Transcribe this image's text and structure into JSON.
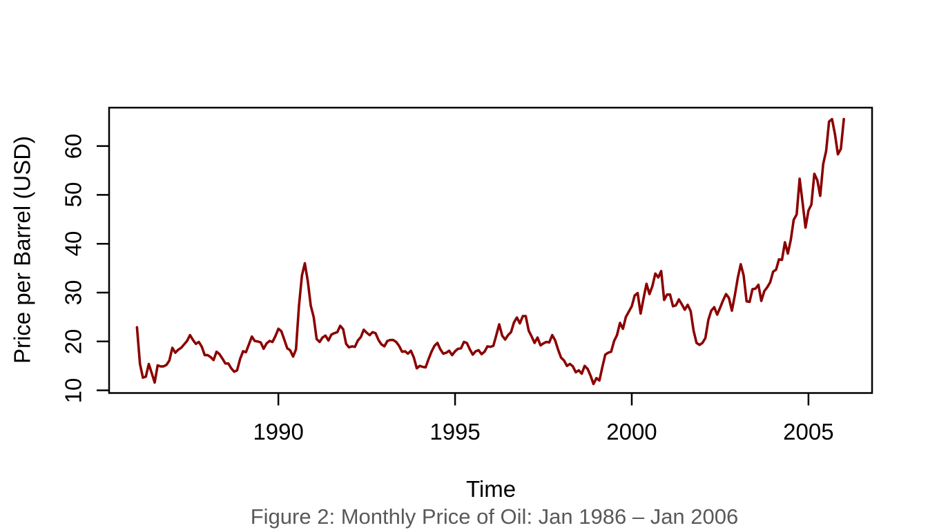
{
  "figure": {
    "x_axis_title": "Time",
    "y_axis_title": "Price per Barrel (USD)",
    "caption": "Figure 2: Monthly Price of Oil: Jan 1986 – Jan 2006"
  },
  "colors": {
    "line": "#8B0000",
    "axis": "#000000",
    "tick_text": "#000000",
    "caption_text": "#595959",
    "background": "#FFFFFF"
  },
  "chart_data": {
    "type": "line",
    "title": "",
    "xlabel": "Time",
    "ylabel": "Price per Barrel (USD)",
    "grid": false,
    "legend_position": "none",
    "xlim": [
      1985.21,
      2006.8
    ],
    "ylim": [
      9.45,
      67.85
    ],
    "x_ticks": [
      "1990",
      "1995",
      "2000",
      "2005"
    ],
    "x_tick_values": [
      1990,
      1995,
      2000,
      2005
    ],
    "y_ticks": [
      "10",
      "20",
      "30",
      "40",
      "50",
      "60"
    ],
    "y_tick_values": [
      10,
      20,
      30,
      40,
      50,
      60
    ],
    "x_start_year": 1986.0,
    "x_step_years": 0.08333333,
    "series": [
      {
        "name": "Monthly oil price (USD per barrel)",
        "values": [
          22.9,
          15.4,
          12.6,
          12.8,
          15.4,
          13.5,
          11.6,
          15.1,
          14.9,
          14.9,
          15.2,
          16.1,
          18.7,
          17.7,
          18.3,
          18.7,
          19.4,
          20.1,
          21.3,
          20.3,
          19.5,
          19.9,
          18.9,
          17.2,
          17.2,
          16.8,
          16.2,
          17.9,
          17.4,
          16.5,
          15.5,
          15.5,
          14.5,
          13.8,
          14.1,
          16.4,
          18.0,
          17.8,
          19.4,
          21.0,
          20.1,
          20.0,
          19.8,
          18.5,
          19.6,
          20.1,
          19.9,
          21.1,
          22.6,
          22.1,
          20.4,
          18.6,
          18.2,
          16.9,
          18.4,
          27.3,
          33.5,
          36.0,
          32.3,
          27.3,
          25.0,
          20.5,
          19.9,
          20.8,
          21.2,
          20.2,
          21.4,
          21.7,
          21.9,
          23.2,
          22.5,
          19.5,
          18.8,
          19.0,
          18.9,
          20.2,
          20.9,
          22.4,
          21.8,
          21.3,
          21.9,
          21.7,
          20.3,
          19.4,
          19.0,
          20.1,
          20.3,
          20.3,
          19.9,
          19.1,
          17.9,
          18.0,
          17.5,
          18.1,
          16.7,
          14.5,
          15.0,
          14.8,
          14.7,
          16.4,
          17.9,
          19.1,
          19.7,
          18.4,
          17.5,
          17.7,
          18.1,
          17.2,
          18.0,
          18.5,
          18.6,
          19.9,
          19.7,
          18.4,
          17.3,
          18.0,
          18.2,
          17.4,
          17.9,
          19.0,
          18.9,
          19.1,
          21.3,
          23.5,
          21.2,
          20.4,
          21.3,
          21.9,
          23.9,
          24.9,
          23.7,
          25.2,
          25.2,
          22.2,
          21.0,
          19.7,
          20.8,
          19.2,
          19.6,
          19.9,
          19.8,
          21.3,
          20.2,
          18.3,
          16.7,
          16.1,
          15.0,
          15.4,
          14.9,
          13.7,
          14.1,
          13.4,
          15.0,
          14.4,
          13.0,
          11.3,
          12.5,
          12.0,
          14.7,
          17.3,
          17.7,
          17.9,
          20.1,
          21.3,
          23.8,
          22.6,
          25.0,
          26.1,
          27.2,
          29.4,
          29.9,
          25.7,
          28.8,
          31.8,
          29.7,
          31.3,
          33.9,
          33.1,
          34.4,
          28.5,
          29.6,
          29.6,
          27.2,
          27.4,
          28.6,
          27.6,
          26.5,
          27.5,
          26.2,
          22.2,
          19.7,
          19.3,
          19.7,
          20.7,
          24.4,
          26.3,
          27.0,
          25.5,
          26.9,
          28.4,
          29.7,
          28.9,
          26.3,
          29.4,
          33.0,
          35.8,
          33.5,
          28.2,
          28.1,
          30.7,
          30.8,
          31.6,
          28.3,
          30.3,
          31.1,
          32.1,
          34.3,
          34.7,
          36.8,
          36.7,
          40.3,
          38.0,
          40.8,
          44.9,
          46.0,
          53.3,
          48.5,
          43.3,
          46.8,
          48.0,
          54.3,
          53.0,
          49.8,
          56.3,
          59.0,
          65.0,
          65.5,
          62.4,
          58.3,
          59.4,
          65.5
        ]
      }
    ]
  }
}
